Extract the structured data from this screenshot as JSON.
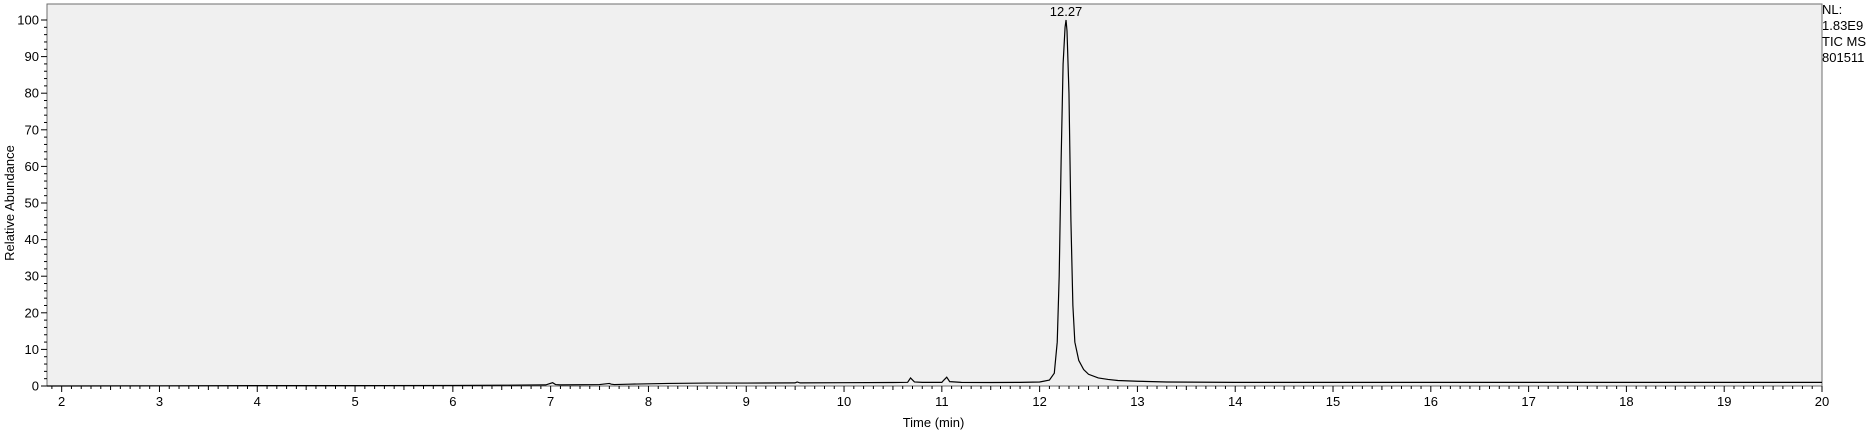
{
  "chart_data": {
    "type": "line",
    "title": "",
    "xlabel": "Time (min)",
    "ylabel": "Relative Abundance",
    "xlim": [
      1.85,
      20.0
    ],
    "ylim": [
      0,
      100
    ],
    "x_ticks": [
      "2",
      "3",
      "4",
      "5",
      "6",
      "7",
      "8",
      "9",
      "10",
      "11",
      "12",
      "13",
      "14",
      "15",
      "16",
      "17",
      "18",
      "19",
      "20"
    ],
    "y_ticks": [
      "0",
      "10",
      "20",
      "30",
      "40",
      "50",
      "60",
      "70",
      "80",
      "90",
      "100"
    ],
    "grid": false,
    "background": "#f0f0f0",
    "line_color": "#000000",
    "peak_annotation": {
      "label": "12.27",
      "x": 12.27,
      "y": 100
    },
    "series": [
      {
        "x": [
          1.85,
          3.0,
          4.0,
          5.0,
          6.0,
          6.5,
          6.95,
          7.02,
          7.05,
          7.1,
          7.5,
          7.6,
          7.62,
          7.65,
          7.8,
          8.0,
          8.2,
          8.6,
          9.0,
          9.5,
          9.52,
          9.55,
          10.0,
          10.5,
          10.65,
          10.68,
          10.72,
          10.8,
          11.0,
          11.02,
          11.05,
          11.08,
          11.2,
          11.5,
          11.8,
          12.0,
          12.1,
          12.15,
          12.18,
          12.2,
          12.22,
          12.24,
          12.26,
          12.27,
          12.28,
          12.3,
          12.32,
          12.34,
          12.36,
          12.4,
          12.45,
          12.5,
          12.6,
          12.7,
          12.8,
          13.0,
          13.3,
          14.0,
          15.0,
          16.0,
          17.0,
          18.0,
          19.0,
          20.0
        ],
        "y": [
          0.0,
          0.05,
          0.1,
          0.1,
          0.15,
          0.2,
          0.3,
          0.9,
          0.4,
          0.3,
          0.4,
          0.7,
          0.5,
          0.4,
          0.5,
          0.6,
          0.7,
          0.8,
          0.8,
          0.85,
          1.1,
          0.85,
          0.9,
          0.95,
          1.0,
          2.2,
          1.1,
          1.0,
          1.0,
          1.6,
          2.4,
          1.2,
          1.0,
          0.95,
          1.0,
          1.1,
          1.6,
          3.5,
          12.0,
          30.0,
          62.0,
          88.0,
          98.0,
          100.0,
          97.0,
          80.0,
          45.0,
          22.0,
          12.0,
          7.0,
          4.5,
          3.2,
          2.2,
          1.8,
          1.5,
          1.3,
          1.1,
          1.0,
          1.0,
          1.0,
          1.0,
          1.0,
          1.0,
          1.0
        ]
      }
    ]
  },
  "side_info": {
    "line1": "NL:",
    "line2": "1.83E9",
    "line3": "TIC  MS",
    "line4": "801511"
  }
}
